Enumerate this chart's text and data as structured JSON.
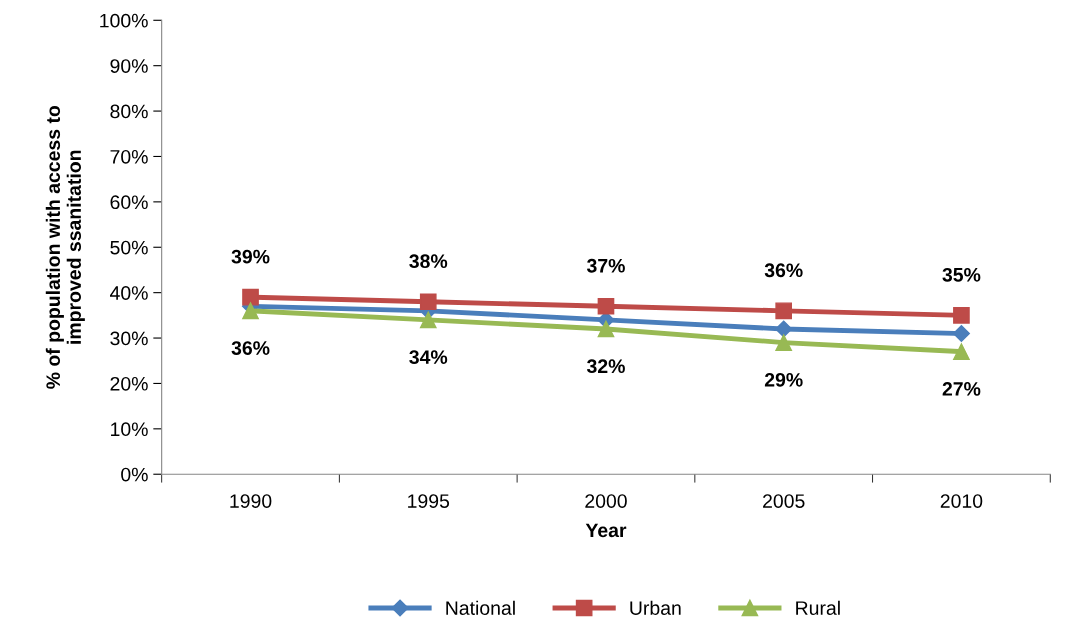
{
  "chart_data": {
    "type": "line",
    "xlabel": "Year",
    "ylabel": "% of population with access to\nimproved ssanitation",
    "categories": [
      "1990",
      "1995",
      "2000",
      "2005",
      "2010"
    ],
    "series": [
      {
        "name": "National",
        "color": "#4a7ebb",
        "marker": "diamond",
        "values": [
          37,
          36,
          34,
          32,
          31
        ]
      },
      {
        "name": "Urban",
        "color": "#be4b48",
        "marker": "square",
        "values": [
          39,
          38,
          37,
          36,
          35
        ],
        "value_labels": [
          "39%",
          "38%",
          "37%",
          "36%",
          "35%"
        ]
      },
      {
        "name": "Rural",
        "color": "#98b954",
        "marker": "triangle",
        "values": [
          36,
          34,
          32,
          29,
          27
        ],
        "value_labels": [
          "36%",
          "34%",
          "32%",
          "29%",
          "27%"
        ]
      }
    ],
    "ylim": [
      0,
      100
    ],
    "yticks": [
      {
        "value": 0,
        "label": "0%"
      },
      {
        "value": 10,
        "label": "10%"
      },
      {
        "value": 20,
        "label": "20%"
      },
      {
        "value": 30,
        "label": "30%"
      },
      {
        "value": 40,
        "label": "40%"
      },
      {
        "value": 50,
        "label": "50%"
      },
      {
        "value": 60,
        "label": "60%"
      },
      {
        "value": 70,
        "label": "70%"
      },
      {
        "value": 80,
        "label": "80%"
      },
      {
        "value": 90,
        "label": "90%"
      },
      {
        "value": 100,
        "label": "100%"
      }
    ],
    "grid": false,
    "legend": "bottom",
    "line_style": "solid"
  }
}
